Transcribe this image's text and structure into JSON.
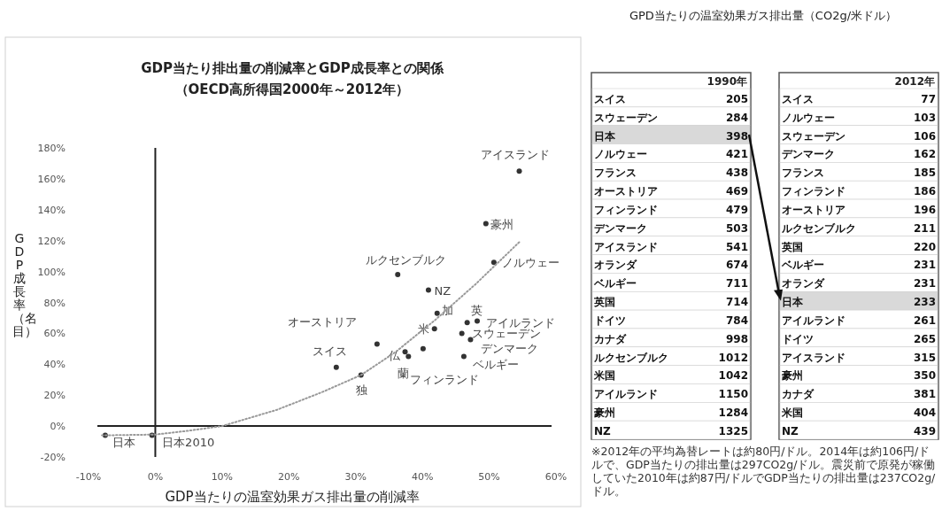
{
  "chart_data": [
    {
      "type": "scatter",
      "title": "GDP当たり排出量の削減率とGDP成長率との関係",
      "subtitle": "（OECD高所得国2000年～2012年）",
      "xlabel": "GDP当たりの温室効果ガス排出量の削減率",
      "ylabel": "GDP成長率（名目）",
      "xlim": [
        -10,
        60
      ],
      "ylim": [
        -20,
        180
      ],
      "xticks": [
        {
          "value": -10,
          "label": "-10%"
        },
        {
          "value": 0,
          "label": "0%"
        },
        {
          "value": 10,
          "label": "10%"
        },
        {
          "value": 20,
          "label": "20%"
        },
        {
          "value": 30,
          "label": "30%"
        },
        {
          "value": 40,
          "label": "40%"
        },
        {
          "value": 50,
          "label": "50%"
        },
        {
          "value": 60,
          "label": "60%"
        }
      ],
      "yticks": [
        {
          "value": -20,
          "label": "-20%"
        },
        {
          "value": 0,
          "label": "0%"
        },
        {
          "value": 20,
          "label": "20%"
        },
        {
          "value": 40,
          "label": "40%"
        },
        {
          "value": 60,
          "label": "60%"
        },
        {
          "value": 80,
          "label": "80%"
        },
        {
          "value": 100,
          "label": "100%"
        },
        {
          "value": 120,
          "label": "120%"
        },
        {
          "value": 140,
          "label": "140%"
        },
        {
          "value": 160,
          "label": "160%"
        },
        {
          "value": 180,
          "label": "180%"
        }
      ],
      "series": [
        {
          "type": "scatter",
          "color": "#333333",
          "marker": "circle",
          "x": [
            54.5,
            49.5,
            50.7,
            36.3,
            40.9,
            42.2,
            41.8,
            46.7,
            48.2,
            45.9,
            47.2,
            46.2,
            40.1,
            37.4,
            37.9,
            33.2,
            27.1,
            30.8,
            -7.5,
            -0.5
          ],
          "values": [
            165,
            131,
            106,
            98,
            88,
            73,
            63,
            67,
            68,
            60,
            56,
            45,
            50,
            48,
            45,
            53,
            38,
            33,
            -6,
            -6
          ],
          "value_labels": [
            "アイスランド",
            "豪州",
            "ノルウェー",
            "ルクセンブルク",
            "NZ",
            "加",
            "米",
            "アイルランド",
            "英",
            "スウェーデン",
            "デンマーク",
            "ベルギー",
            "フィンランド",
            "仏",
            "蘭",
            "オーストリア",
            "スイス",
            "独",
            "日本",
            "日本2010"
          ]
        },
        {
          "type": "line",
          "color": "#999999",
          "line_style": "dotted",
          "x": [
            -8,
            0,
            5,
            10,
            18.2,
            25,
            30.8,
            36,
            42,
            48,
            54.5
          ],
          "values": [
            -6,
            -5.5,
            -3,
            0,
            10.5,
            22,
            33,
            48,
            69,
            92,
            119
          ]
        }
      ]
    },
    {
      "type": "other",
      "title": "GPD当たりの温室効果ガス排出量（CO2g/米ドル）",
      "subtitle": "1990年",
      "data_labels": true,
      "categories": [
        "スイス",
        "スウェーデン",
        "日本",
        "ノルウェー",
        "フランス",
        "オーストリア",
        "フィンランド",
        "デンマーク",
        "アイスランド",
        "オランダ",
        "ベルギー",
        "英国",
        "ドイツ",
        "カナダ",
        "ルクセンブルク",
        "米国",
        "アイルランド",
        "豪州",
        "NZ"
      ],
      "values": [
        205,
        284,
        398,
        421,
        438,
        469,
        479,
        503,
        541,
        674,
        711,
        714,
        784,
        998,
        1012,
        1042,
        1150,
        1284,
        1325
      ],
      "colors": [
        "#ffffff",
        "#ffffff",
        "#d9d9d9",
        "#ffffff",
        "#ffffff",
        "#ffffff",
        "#ffffff",
        "#ffffff",
        "#ffffff",
        "#ffffff",
        "#ffffff",
        "#ffffff",
        "#ffffff",
        "#ffffff",
        "#ffffff",
        "#ffffff",
        "#ffffff",
        "#ffffff",
        "#ffffff"
      ]
    },
    {
      "type": "other",
      "subtitle": "2012年",
      "data_labels": true,
      "categories": [
        "スイス",
        "ノルウェー",
        "スウェーデン",
        "デンマーク",
        "フランス",
        "フィンランド",
        "オーストリア",
        "ルクセンブルク",
        "英国",
        "ベルギー",
        "オランダ",
        "日本",
        "アイルランド",
        "ドイツ",
        "アイスランド",
        "豪州",
        "カナダ",
        "米国",
        "NZ"
      ],
      "values": [
        77,
        103,
        106,
        162,
        185,
        186,
        196,
        211,
        220,
        231,
        231,
        233,
        261,
        265,
        315,
        350,
        381,
        404,
        439
      ],
      "colors": [
        "#ffffff",
        "#ffffff",
        "#ffffff",
        "#ffffff",
        "#ffffff",
        "#ffffff",
        "#ffffff",
        "#ffffff",
        "#ffffff",
        "#ffffff",
        "#ffffff",
        "#d9d9d9",
        "#ffffff",
        "#ffffff",
        "#ffffff",
        "#ffffff",
        "#ffffff",
        "#ffffff",
        "#ffffff"
      ],
      "annotations": [
        "※2012年の平均為替レートは約80円/ドル。2014年は約106円/ドルで、GDP当たりの排出量は297CO2g/ドル。震災前で原発が稼働していた2010年は約87円/ドルでGDP当たりの排出量は237CO2g/ドル。"
      ]
    }
  ]
}
